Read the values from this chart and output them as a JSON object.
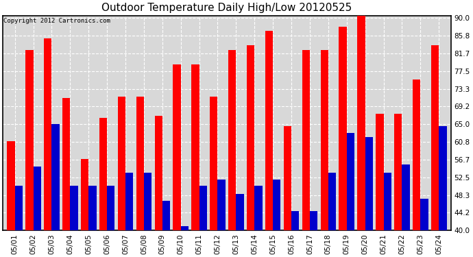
{
  "title": "Outdoor Temperature Daily High/Low 20120525",
  "copyright": "Copyright 2012 Cartronics.com",
  "dates": [
    "05/01",
    "05/02",
    "05/03",
    "05/04",
    "05/05",
    "05/06",
    "05/07",
    "05/08",
    "05/09",
    "05/10",
    "05/11",
    "05/12",
    "05/13",
    "05/14",
    "05/15",
    "05/16",
    "05/17",
    "05/18",
    "05/19",
    "05/20",
    "05/21",
    "05/22",
    "05/23",
    "05/24"
  ],
  "highs": [
    61.0,
    82.5,
    85.2,
    71.2,
    56.8,
    66.5,
    71.5,
    71.5,
    67.0,
    79.0,
    79.0,
    71.5,
    82.5,
    83.5,
    87.0,
    64.5,
    82.5,
    82.5,
    88.0,
    91.0,
    67.5,
    67.5,
    75.5,
    83.5
  ],
  "lows": [
    50.5,
    55.0,
    65.0,
    50.5,
    50.5,
    50.5,
    53.5,
    53.5,
    47.0,
    41.0,
    50.5,
    52.0,
    48.5,
    50.5,
    52.0,
    44.5,
    44.5,
    53.5,
    63.0,
    62.0,
    53.5,
    55.5,
    47.5,
    64.5
  ],
  "high_color": "#ff0000",
  "low_color": "#0000cc",
  "bg_color": "#ffffff",
  "plot_bg_color": "#d8d8d8",
  "grid_color": "#ffffff",
  "yticks": [
    40.0,
    44.2,
    48.3,
    52.5,
    56.7,
    60.8,
    65.0,
    69.2,
    73.3,
    77.5,
    81.7,
    85.8,
    90.0
  ],
  "ymin": 40.0,
  "ymax": 90.5,
  "bar_width": 0.42,
  "title_fontsize": 11,
  "tick_fontsize": 7.5,
  "copyright_fontsize": 6.5
}
